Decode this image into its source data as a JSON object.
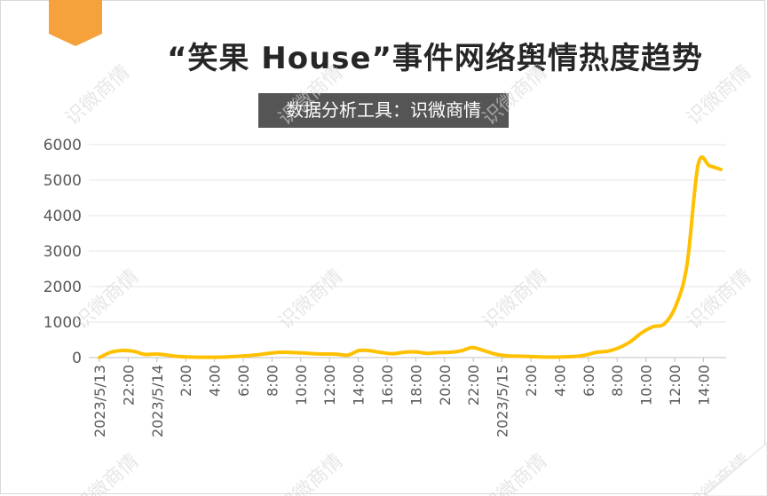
{
  "title": "“笑果 House”事件网络舆情热度趋势",
  "subtitle": "数据分析工具：识微商情",
  "watermark": "识微商情",
  "colors": {
    "line": "#FFC000",
    "badge": "#F5A23C",
    "subtitle_bg": "#555555",
    "grid": "#e6e6e6"
  },
  "chart_data": {
    "type": "line",
    "ylim": [
      0,
      6000
    ],
    "yticks": [
      0,
      1000,
      2000,
      3000,
      4000,
      5000,
      6000
    ],
    "x_labels": [
      "2023/5/13",
      "22:00",
      "2023/5/14",
      "2:00",
      "4:00",
      "6:00",
      "8:00",
      "10:00",
      "12:00",
      "14:00",
      "16:00",
      "18:00",
      "20:00",
      "22:00",
      "2023/5/15",
      "2:00",
      "4:00",
      "6:00",
      "8:00",
      "10:00",
      "12:00",
      "14:00"
    ],
    "series": [
      {
        "values": [
          0,
          150,
          200,
          180,
          90,
          100,
          70,
          30,
          15,
          10,
          10,
          15,
          30,
          50,
          80,
          120,
          150,
          145,
          130,
          110,
          100,
          95,
          70,
          200,
          190,
          140,
          110,
          150,
          160,
          120,
          140,
          150,
          190,
          280,
          200,
          100,
          50,
          40,
          30,
          20,
          15,
          20,
          30,
          70,
          150,
          180,
          280,
          450,
          700,
          870,
          950,
          1450,
          2600,
          5450,
          5400,
          5300
        ]
      }
    ]
  }
}
